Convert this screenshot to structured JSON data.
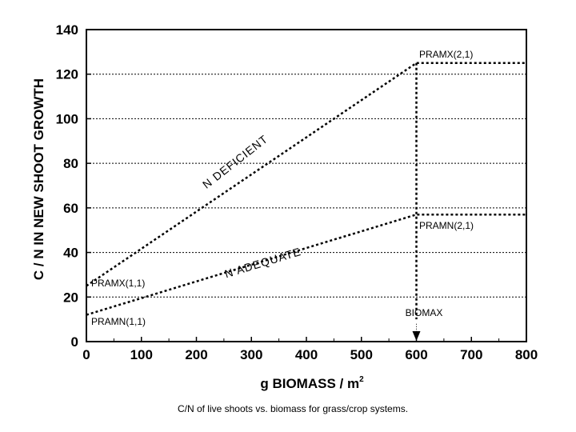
{
  "chart_data": {
    "type": "line",
    "title": "",
    "xlabel": "g BIOMASS / m",
    "xlabel_superscript": "2",
    "ylabel": "C / N  IN NEW SHOOT GROWTH",
    "xlim": [
      0,
      800
    ],
    "ylim": [
      0,
      140
    ],
    "x_ticks": [
      0,
      100,
      200,
      300,
      400,
      500,
      600,
      700,
      800
    ],
    "y_ticks": [
      0,
      20,
      40,
      60,
      80,
      100,
      120,
      140
    ],
    "grid": "horizontal dotted",
    "series": [
      {
        "name": "N DEFICIENT",
        "points": [
          [
            0,
            25
          ],
          [
            600,
            125
          ],
          [
            800,
            125
          ]
        ]
      },
      {
        "name": "N ADEQUATE",
        "points": [
          [
            0,
            12
          ],
          [
            600,
            57
          ],
          [
            800,
            57
          ]
        ]
      }
    ],
    "vertical_marker": {
      "x": 600,
      "label": "BIOMAX"
    },
    "annotations": {
      "pramx21": "PRAMX(2,1)",
      "pramn21": "PRAMN(2,1)",
      "pramx11": "PRAMX(1,1)",
      "pramn11": "PRAMN(1,1)",
      "n_deficient": "N DEFICIENT",
      "n_adequate": "N ADEQUATE"
    }
  },
  "caption": "C/N of live shoots vs. biomass for grass/crop systems.",
  "colors": {
    "line": "#000000",
    "background": "#ffffff"
  }
}
